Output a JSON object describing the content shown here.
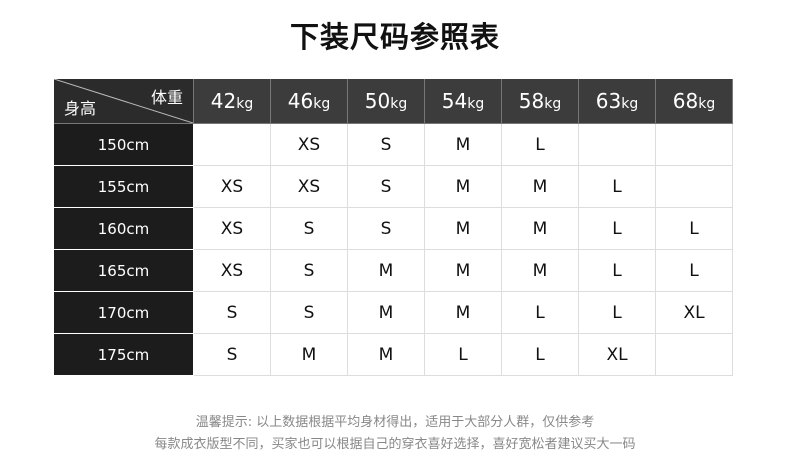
{
  "title": "下装尺码参照表",
  "corner": {
    "weight_label": "体重",
    "height_label": "身高"
  },
  "weights": [
    {
      "n": "42",
      "u": "kg"
    },
    {
      "n": "46",
      "u": "kg"
    },
    {
      "n": "50",
      "u": "kg"
    },
    {
      "n": "54",
      "u": "kg"
    },
    {
      "n": "58",
      "u": "kg"
    },
    {
      "n": "63",
      "u": "kg"
    },
    {
      "n": "68",
      "u": "kg"
    }
  ],
  "rows": [
    {
      "height": "150cm",
      "sizes": [
        "",
        "XS",
        "S",
        "M",
        "L",
        "",
        ""
      ]
    },
    {
      "height": "155cm",
      "sizes": [
        "XS",
        "XS",
        "S",
        "M",
        "M",
        "L",
        ""
      ]
    },
    {
      "height": "160cm",
      "sizes": [
        "XS",
        "S",
        "S",
        "M",
        "M",
        "L",
        "L"
      ]
    },
    {
      "height": "165cm",
      "sizes": [
        "XS",
        "S",
        "M",
        "M",
        "M",
        "L",
        "L"
      ]
    },
    {
      "height": "170cm",
      "sizes": [
        "S",
        "S",
        "M",
        "M",
        "L",
        "L",
        "XL"
      ]
    },
    {
      "height": "175cm",
      "sizes": [
        "S",
        "M",
        "M",
        "L",
        "L",
        "XL",
        ""
      ]
    }
  ],
  "notes": [
    "温馨提示: 以上数据根据平均身材得出，适用于大部分人群，仅供参考",
    "每款成衣版型不同，买家也可以根据自己的穿衣喜好选择，喜好宽松者建议买大一码"
  ]
}
